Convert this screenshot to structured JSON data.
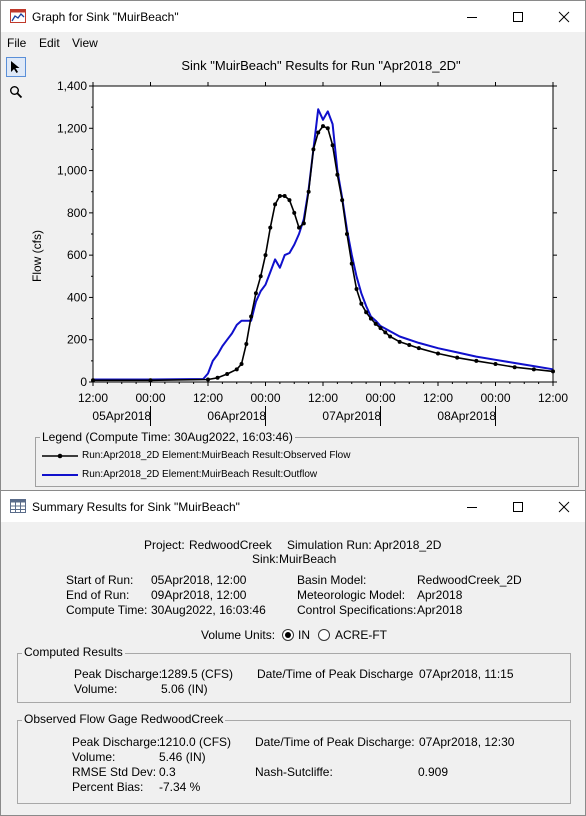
{
  "graph_window": {
    "title": "Graph for Sink \"MuirBeach\"",
    "menu": [
      "File",
      "Edit",
      "View"
    ]
  },
  "icons": {
    "pointer": "pointer-arrow-icon",
    "zoom": "magnifier-icon",
    "graph_app": "graph-window-icon",
    "summary_app": "table-window-icon"
  },
  "chart_data": {
    "type": "line",
    "title": "Sink \"MuirBeach\" Results for Run \"Apr2018_2D\"",
    "ylabel": "Flow (cfs)",
    "xlabel": "",
    "ylim": [
      0,
      1400
    ],
    "yticks": [
      0,
      200,
      400,
      600,
      800,
      1000,
      1200,
      1400
    ],
    "ytick_labels": [
      "0",
      "200",
      "400",
      "600",
      "800",
      "1,000",
      "1,200",
      "1,400"
    ],
    "x_unit": "hours since 05Apr2018 00:00",
    "xlim": [
      12,
      108
    ],
    "xticks": [
      12,
      24,
      36,
      48,
      60,
      72,
      84,
      96,
      108
    ],
    "xtick_labels": [
      "12:00",
      "00:00",
      "12:00",
      "00:00",
      "12:00",
      "00:00",
      "12:00",
      "00:00",
      "12:00"
    ],
    "date_labels": [
      {
        "label": "05Apr2018",
        "x": 18
      },
      {
        "label": "06Apr2018",
        "x": 42
      },
      {
        "label": "07Apr2018",
        "x": 66
      },
      {
        "label": "08Apr2018",
        "x": 90
      }
    ],
    "date_dividers": [
      24,
      48,
      72,
      96
    ],
    "grid": false,
    "legend_title": "Legend (Compute Time: 30Aug2022, 16:03:46)",
    "series": [
      {
        "name": "Run:Apr2018_2D Element:MuirBeach Result:Observed Flow",
        "color": "#000000",
        "marker": "dot",
        "x": [
          12,
          24,
          36,
          38,
          40,
          42,
          43,
          44,
          45,
          46,
          47,
          48,
          49,
          50,
          51,
          52,
          53,
          54,
          55,
          56,
          57,
          58,
          59,
          60,
          61,
          62,
          63,
          64,
          65,
          66,
          67,
          68,
          69,
          70,
          71,
          72,
          73,
          74,
          76,
          78,
          80,
          84,
          88,
          92,
          96,
          100,
          104,
          108
        ],
        "y": [
          8,
          8,
          12,
          20,
          38,
          60,
          85,
          180,
          310,
          420,
          500,
          600,
          730,
          840,
          880,
          880,
          860,
          800,
          730,
          750,
          900,
          1100,
          1180,
          1210,
          1200,
          1120,
          980,
          860,
          700,
          560,
          440,
          370,
          330,
          300,
          275,
          255,
          235,
          215,
          190,
          175,
          160,
          135,
          115,
          100,
          85,
          70,
          60,
          50
        ]
      },
      {
        "name": "Run:Apr2018_2D Element:MuirBeach Result:Outflow",
        "color": "#1010cc",
        "marker": "none",
        "x": [
          12,
          24,
          35,
          36,
          37,
          38,
          39,
          40,
          41,
          42,
          43,
          44,
          45,
          46,
          47,
          48,
          49,
          50,
          51,
          52,
          53,
          54,
          55,
          56,
          57,
          58,
          59,
          60,
          61,
          62,
          63,
          64,
          65,
          66,
          67,
          68,
          69,
          70,
          71,
          72,
          74,
          76,
          80,
          84,
          88,
          92,
          96,
          100,
          104,
          108
        ],
        "y": [
          12,
          12,
          14,
          40,
          100,
          130,
          170,
          200,
          230,
          270,
          290,
          290,
          290,
          380,
          430,
          460,
          520,
          580,
          540,
          600,
          610,
          650,
          700,
          770,
          910,
          1100,
          1290,
          1240,
          1280,
          1220,
          1000,
          870,
          720,
          600,
          500,
          420,
          360,
          310,
          290,
          265,
          240,
          215,
          185,
          160,
          140,
          120,
          105,
          90,
          75,
          60
        ]
      }
    ]
  },
  "summary_window": {
    "title": "Summary Results for Sink \"MuirBeach\"",
    "project_label": "Project:",
    "project_value": "RedwoodCreek",
    "sim_run_label": "Simulation Run:",
    "sim_run_value": "Apr2018_2D",
    "sink_label": "Sink:",
    "sink_value": "MuirBeach",
    "start_label": "Start of Run:",
    "start_value": "05Apr2018, 12:00",
    "end_label": "End of Run:",
    "end_value": "09Apr2018, 12:00",
    "compute_label": "Compute Time:",
    "compute_value": "30Aug2022, 16:03:46",
    "basin_label": "Basin Model:",
    "basin_value": "RedwoodCreek_2D",
    "met_label": "Meteorologic Model:",
    "met_value": "Apr2018",
    "control_label": "Control Specifications:",
    "control_value": "Apr2018",
    "volume_units_label": "Volume Units:",
    "unit_in": "IN",
    "unit_acre_ft": "ACRE-FT",
    "selected_unit": "IN",
    "computed": {
      "caption": "Computed Results",
      "peak_label": "Peak Discharge:",
      "peak_value": "1289.5 (CFS)",
      "peak_time_label": "Date/Time of Peak Discharge",
      "peak_time_value": "07Apr2018, 11:15",
      "volume_label": "Volume:",
      "volume_value": "5.06 (IN)"
    },
    "observed": {
      "caption": "Observed Flow Gage RedwoodCreek",
      "peak_label": "Peak Discharge:",
      "peak_value": "1210.0 (CFS)",
      "peak_time_label": "Date/Time of Peak Discharge:",
      "peak_time_value": "07Apr2018, 12:30",
      "volume_label": "Volume:",
      "volume_value": "5.46 (IN)",
      "rmse_label": "RMSE Std Dev:",
      "rmse_value": "0.3",
      "nash_label": "Nash-Sutcliffe:",
      "nash_value": "0.909",
      "bias_label": "Percent Bias:",
      "bias_value": "-7.34 %"
    }
  }
}
